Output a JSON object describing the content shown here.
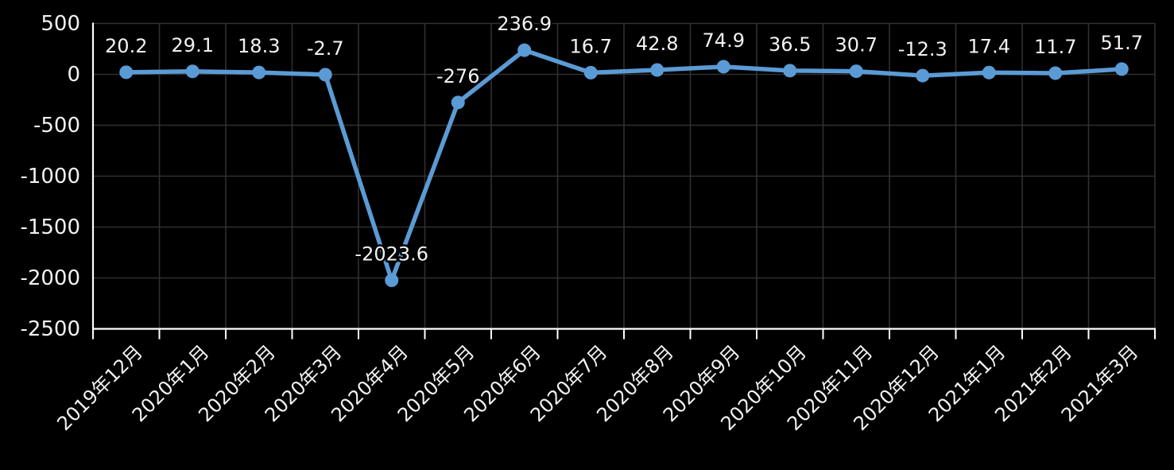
{
  "chart_data": {
    "type": "line",
    "categories": [
      "2019年12月",
      "2020年1月",
      "2020年2月",
      "2020年3月",
      "2020年4月",
      "2020年5月",
      "2020年6月",
      "2020年7月",
      "2020年8月",
      "2020年9月",
      "2020年10月",
      "2020年11月",
      "2020年12月",
      "2021年1月",
      "2021年2月",
      "2021年3月"
    ],
    "series": [
      {
        "name": "",
        "values": [
          20.2,
          29.1,
          18.3,
          -2.7,
          -2023.6,
          -276,
          236.9,
          16.7,
          42.8,
          74.9,
          36.5,
          30.7,
          -12.3,
          17.4,
          11.7,
          51.7
        ]
      }
    ],
    "data_labels": [
      "20.2",
      "29.1",
      "18.3",
      "-2.7",
      "-2023.6",
      "-276",
      "236.9",
      "16.7",
      "42.8",
      "74.9",
      "36.5",
      "30.7",
      "-12.3",
      "17.4",
      "11.7",
      "51.7"
    ],
    "y_ticks": [
      "500",
      "0",
      "-500",
      "-1000",
      "-1500",
      "-2000",
      "-2500"
    ],
    "y_tick_values": [
      500,
      0,
      -500,
      -1000,
      -1500,
      -2000,
      -2500
    ],
    "ylim": [
      -2500,
      500
    ],
    "grid": true,
    "legend_position": "none",
    "colors": {
      "line": "#5B9BD5",
      "marker": "#5B9BD5",
      "background": "#000000",
      "text": "#F2F2F2",
      "grid": "#303030",
      "axis": "#FFFFFF"
    }
  }
}
